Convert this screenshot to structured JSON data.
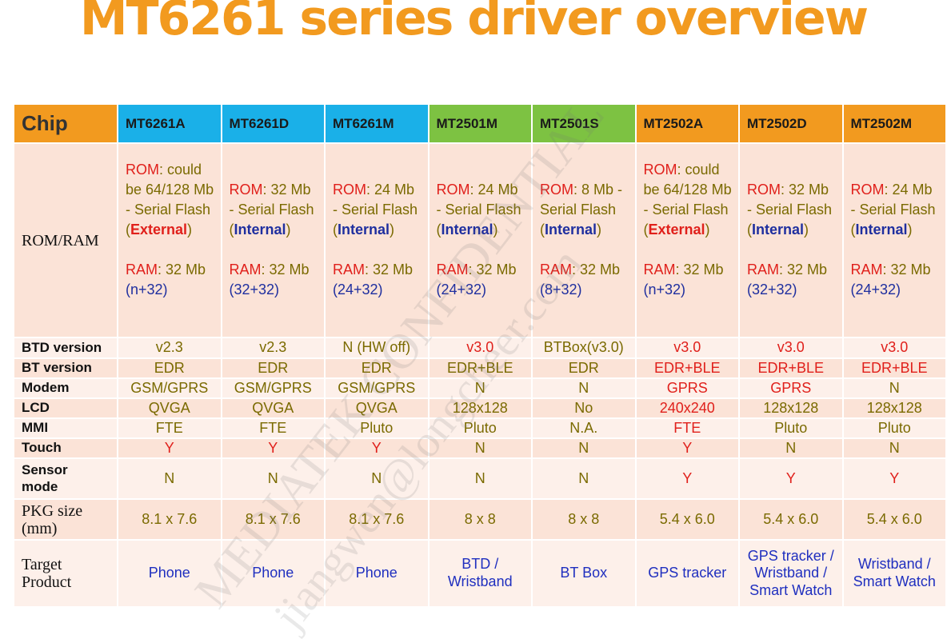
{
  "title": "MT6261 series driver overview",
  "chip_label": "Chip",
  "chips": [
    "MT6261A",
    "MT6261D",
    "MT6261M",
    "MT2501M",
    "MT2501S",
    "MT2502A",
    "MT2502D",
    "MT2502M"
  ],
  "header_colors": {
    "MT6261": "#1ab0e8",
    "MT2501": "#7dc242",
    "MT2502": "#f29a1f"
  },
  "row_labels": {
    "rom_ram": "ROM/RAM",
    "btd": "BTD version",
    "bt": "BT version",
    "modem": "Modem",
    "lcd": "LCD",
    "mmi": "MMI",
    "touch": "Touch",
    "sensor_1": "Sensor",
    "sensor_2": "mode",
    "pkg_1": "PKG size",
    "pkg_2": "(mm)",
    "target_1": "Target",
    "target_2": "Product"
  },
  "rom_ram": [
    {
      "rom_key": "ROM",
      "rom_text": ": could be 64/128 Mb - Serial Flash",
      "loc": "External",
      "ram_key": "RAM",
      "ram_text": ": 32 Mb",
      "ram_split": "(n+32)"
    },
    {
      "rom_key": "ROM",
      "rom_text": ": 32 Mb - Serial Flash",
      "loc": "Internal",
      "ram_key": "RAM",
      "ram_text": ": 32 Mb",
      "ram_split": "(32+32)"
    },
    {
      "rom_key": "ROM",
      "rom_text": ": 24 Mb - Serial Flash",
      "loc": "Internal",
      "ram_key": "RAM",
      "ram_text": ": 32 Mb",
      "ram_split": "(24+32)"
    },
    {
      "rom_key": "ROM",
      "rom_text": ": 24 Mb - Serial Flash",
      "loc": "Internal",
      "ram_key": "RAM",
      "ram_text": ": 32 Mb",
      "ram_split": "(24+32)"
    },
    {
      "rom_key": "ROM",
      "rom_text": ": 8 Mb - Serial Flash",
      "loc": "Internal",
      "ram_key": "RAM",
      "ram_text": ": 32 Mb",
      "ram_split": "(8+32)"
    },
    {
      "rom_key": "ROM",
      "rom_text": ": could be 64/128 Mb - Serial Flash",
      "loc": "External",
      "ram_key": "RAM",
      "ram_text": ": 32 Mb",
      "ram_split": "(n+32)"
    },
    {
      "rom_key": "ROM",
      "rom_text": ": 32 Mb - Serial Flash",
      "loc": "Internal",
      "ram_key": "RAM",
      "ram_text": ": 32 Mb",
      "ram_split": "(32+32)"
    },
    {
      "rom_key": "ROM",
      "rom_text": ": 24 Mb - Serial Flash",
      "loc": "Internal",
      "ram_key": "RAM",
      "ram_text": ": 32 Mb",
      "ram_split": "(24+32)"
    }
  ],
  "btd": [
    "v2.3",
    "v2.3",
    "N (HW off)",
    "v3.0",
    "BTBox(v3.0)",
    "v3.0",
    "v3.0",
    "v3.0"
  ],
  "bt": [
    "EDR",
    "EDR",
    "EDR",
    "EDR+BLE",
    "EDR",
    "EDR+BLE",
    "EDR+BLE",
    "EDR+BLE"
  ],
  "modem": [
    "GSM/GPRS",
    "GSM/GPRS",
    "GSM/GPRS",
    "N",
    "N",
    "GPRS",
    "GPRS",
    "N"
  ],
  "lcd": [
    "QVGA",
    "QVGA",
    "QVGA",
    "128x128",
    "No",
    "240x240",
    "128x128",
    "128x128"
  ],
  "mmi": [
    "FTE",
    "FTE",
    "Pluto",
    "Pluto",
    "N.A.",
    "FTE",
    "Pluto",
    "Pluto"
  ],
  "touch": [
    "Y",
    "Y",
    "Y",
    "N",
    "N",
    "Y",
    "N",
    "N"
  ],
  "sensor": [
    "N",
    "N",
    "N",
    "N",
    "N",
    "Y",
    "Y",
    "Y"
  ],
  "pkg": [
    "8.1 x 7.6",
    "8.1 x 7.6",
    "8.1 x 7.6",
    "8 x 8",
    "8 x 8",
    "5.4 x 6.0",
    "5.4 x 6.0",
    "5.4 x 6.0"
  ],
  "target": [
    "Phone",
    "Phone",
    "Phone",
    "BTD / Wristband",
    "BT Box",
    "GPS tracker",
    "GPS tracker / Wristband / Smart Watch",
    "Wristband / Smart Watch"
  ],
  "watermark_1": "MEDIATEK CONFIDENTIAL",
  "watermark_2": "jiangwen@longcheer.com"
}
